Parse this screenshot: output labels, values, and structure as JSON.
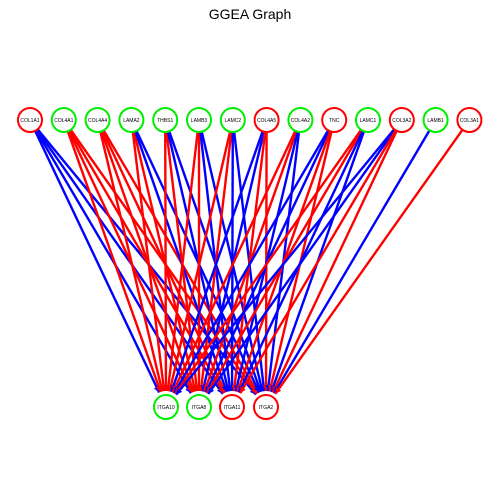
{
  "title": "GGEA Graph",
  "colors": {
    "red": "#ff0000",
    "green": "#00ee00",
    "blue": "#0000ff"
  },
  "sources": [
    {
      "label": "COL1A1",
      "ring": "red"
    },
    {
      "label": "COL4A1",
      "ring": "green"
    },
    {
      "label": "COL4A4",
      "ring": "green"
    },
    {
      "label": "LAMA2",
      "ring": "green"
    },
    {
      "label": "THBS1",
      "ring": "green"
    },
    {
      "label": "LAMB3",
      "ring": "green"
    },
    {
      "label": "LAMC2",
      "ring": "green"
    },
    {
      "label": "COL4A5",
      "ring": "red"
    },
    {
      "label": "COL4A2",
      "ring": "green"
    },
    {
      "label": "TNC",
      "ring": "red"
    },
    {
      "label": "LAMC1",
      "ring": "green"
    },
    {
      "label": "COL3A2",
      "ring": "red"
    },
    {
      "label": "LAMB1",
      "ring": "green"
    },
    {
      "label": "COL3A1",
      "ring": "red"
    }
  ],
  "targets": [
    {
      "label": "ITGA10",
      "ring": "green"
    },
    {
      "label": "ITGA8",
      "ring": "green"
    },
    {
      "label": "ITGA11",
      "ring": "red"
    },
    {
      "label": "ITGA2",
      "ring": "red"
    }
  ],
  "edges": [
    [
      "COL1A1",
      "ITGA10",
      "blue"
    ],
    [
      "COL1A1",
      "ITGA8",
      "blue"
    ],
    [
      "COL1A1",
      "ITGA11",
      "blue"
    ],
    [
      "COL1A1",
      "ITGA2",
      "blue"
    ],
    [
      "COL4A1",
      "ITGA10",
      "red"
    ],
    [
      "COL4A1",
      "ITGA8",
      "red"
    ],
    [
      "COL4A1",
      "ITGA11",
      "red"
    ],
    [
      "COL4A1",
      "ITGA2",
      "red"
    ],
    [
      "COL4A4",
      "ITGA10",
      "red"
    ],
    [
      "COL4A4",
      "ITGA8",
      "red"
    ],
    [
      "COL4A4",
      "ITGA11",
      "red"
    ],
    [
      "COL4A4",
      "ITGA2",
      "red"
    ],
    [
      "LAMA2",
      "ITGA10",
      "red"
    ],
    [
      "LAMA2",
      "ITGA8",
      "red"
    ],
    [
      "LAMA2",
      "ITGA11",
      "blue"
    ],
    [
      "LAMA2",
      "ITGA2",
      "blue"
    ],
    [
      "THBS1",
      "ITGA10",
      "red"
    ],
    [
      "THBS1",
      "ITGA8",
      "red"
    ],
    [
      "THBS1",
      "ITGA11",
      "blue"
    ],
    [
      "THBS1",
      "ITGA2",
      "blue"
    ],
    [
      "LAMB3",
      "ITGA10",
      "red"
    ],
    [
      "LAMB3",
      "ITGA8",
      "red"
    ],
    [
      "LAMB3",
      "ITGA11",
      "blue"
    ],
    [
      "LAMB3",
      "ITGA2",
      "blue"
    ],
    [
      "LAMC2",
      "ITGA10",
      "red"
    ],
    [
      "LAMC2",
      "ITGA8",
      "red"
    ],
    [
      "LAMC2",
      "ITGA11",
      "blue"
    ],
    [
      "LAMC2",
      "ITGA2",
      "blue"
    ],
    [
      "COL4A5",
      "ITGA10",
      "blue"
    ],
    [
      "COL4A5",
      "ITGA8",
      "blue"
    ],
    [
      "COL4A5",
      "ITGA11",
      "red"
    ],
    [
      "COL4A5",
      "ITGA2",
      "red"
    ],
    [
      "COL4A2",
      "ITGA10",
      "red"
    ],
    [
      "COL4A2",
      "ITGA8",
      "red"
    ],
    [
      "COL4A2",
      "ITGA11",
      "blue"
    ],
    [
      "COL4A2",
      "ITGA2",
      "blue"
    ],
    [
      "TNC",
      "ITGA10",
      "blue"
    ],
    [
      "TNC",
      "ITGA8",
      "blue"
    ],
    [
      "TNC",
      "ITGA11",
      "red"
    ],
    [
      "TNC",
      "ITGA2",
      "red"
    ],
    [
      "LAMC1",
      "ITGA10",
      "red"
    ],
    [
      "LAMC1",
      "ITGA8",
      "red"
    ],
    [
      "LAMC1",
      "ITGA11",
      "blue"
    ],
    [
      "LAMC1",
      "ITGA2",
      "blue"
    ],
    [
      "COL3A2",
      "ITGA10",
      "blue"
    ],
    [
      "COL3A2",
      "ITGA8",
      "blue"
    ],
    [
      "COL3A2",
      "ITGA11",
      "red"
    ],
    [
      "COL3A2",
      "ITGA2",
      "red"
    ],
    [
      "LAMB1",
      "ITGA2",
      "blue"
    ],
    [
      "COL3A1",
      "ITGA2",
      "red"
    ]
  ]
}
